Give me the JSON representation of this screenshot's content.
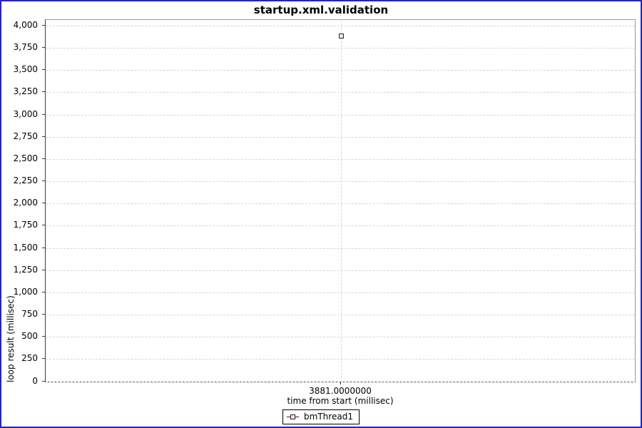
{
  "frame": {
    "border_color": "#2323c8",
    "background": "#ffffff"
  },
  "chart_data": {
    "type": "scatter",
    "title": "startup.xml.validation",
    "xlabel": "time from start (millisec)",
    "ylabel": "loop result (millisec)",
    "ylim": [
      0,
      4000
    ],
    "grid": "dashed",
    "legend_position": "bottom",
    "y_ticks": [
      {
        "v": 0,
        "label": "0"
      },
      {
        "v": 250,
        "label": "250"
      },
      {
        "v": 500,
        "label": "500"
      },
      {
        "v": 750,
        "label": "750"
      },
      {
        "v": 1000,
        "label": "1,000"
      },
      {
        "v": 1250,
        "label": "1,250"
      },
      {
        "v": 1500,
        "label": "1,500"
      },
      {
        "v": 1750,
        "label": "1,750"
      },
      {
        "v": 2000,
        "label": "2,000"
      },
      {
        "v": 2250,
        "label": "2,250"
      },
      {
        "v": 2500,
        "label": "2,500"
      },
      {
        "v": 2750,
        "label": "2,750"
      },
      {
        "v": 3000,
        "label": "3,000"
      },
      {
        "v": 3250,
        "label": "3,250"
      },
      {
        "v": 3500,
        "label": "3,500"
      },
      {
        "v": 3750,
        "label": "3,750"
      },
      {
        "v": 4000,
        "label": "4,000"
      }
    ],
    "x_ticks": [
      {
        "v": 3881,
        "label": "3881.0000000"
      }
    ],
    "series": [
      {
        "name": "bmThread1",
        "marker": "square",
        "marker_border_color": "#4a1717",
        "marker_fill_color": "#ddf0e6",
        "points": [
          {
            "x": 3881,
            "y": 3881
          }
        ]
      }
    ],
    "colors": {
      "gridline": "#d6d6d6",
      "plot_outline": "#9a9a9a",
      "axis_line": "#3c3c3c"
    }
  }
}
